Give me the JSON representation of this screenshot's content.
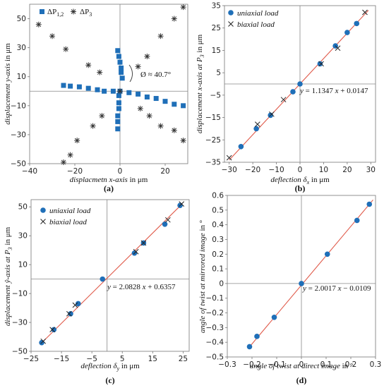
{
  "chart_data": [
    {
      "id": "a",
      "type": "scatter",
      "panel_label": "(a)",
      "xlabel": "displacmetn x-axis in μm",
      "ylabel": "displacement y-axis in μm",
      "xlim": [
        -40,
        30
      ],
      "ylim": [
        -50,
        60
      ],
      "xticks": [
        -40,
        -20,
        0,
        20
      ],
      "yticks": [
        -50,
        -30,
        -10,
        10,
        30,
        50
      ],
      "legend": {
        "placement": "top-left",
        "entries": [
          "ΔP1,2",
          "ΔP3"
        ]
      },
      "annotation": "Ø ≈ 40.7°",
      "colors": {
        "square": "#1f6fb8",
        "star": "#333333"
      },
      "series": [
        {
          "name": "ΔP1,2",
          "marker": "square",
          "points": [
            [
              -1,
              28
            ],
            [
              -0.5,
              24
            ],
            [
              0,
              20
            ],
            [
              0.5,
              16
            ],
            [
              0.5,
              13
            ],
            [
              1,
              9
            ],
            [
              -25,
              4
            ],
            [
              -22,
              3.5
            ],
            [
              -18,
              3
            ],
            [
              -14,
              2
            ],
            [
              -10,
              1
            ],
            [
              -7,
              0
            ],
            [
              -3,
              0
            ],
            [
              0,
              0
            ],
            [
              -0.5,
              -3
            ],
            [
              -0.5,
              -8
            ],
            [
              -0.5,
              -12
            ],
            [
              -1,
              -17
            ],
            [
              -1,
              -21
            ],
            [
              -1,
              -26
            ],
            [
              4,
              -1
            ],
            [
              8,
              -2
            ],
            [
              12,
              -4
            ],
            [
              16,
              -5
            ],
            [
              20,
              -7
            ],
            [
              24,
              -9
            ],
            [
              28,
              -10
            ]
          ]
        },
        {
          "name": "ΔP3",
          "marker": "star",
          "points": [
            [
              -36,
              46
            ],
            [
              -30,
              38
            ],
            [
              -24,
              29
            ],
            [
              -14,
              18
            ],
            [
              -9,
              13
            ],
            [
              0,
              0
            ],
            [
              -8,
              -17
            ],
            [
              -12,
              -24
            ],
            [
              -19,
              -34
            ],
            [
              -22,
              -44
            ],
            [
              -25,
              -49
            ],
            [
              8,
              17
            ],
            [
              12,
              24
            ],
            [
              18,
              38
            ],
            [
              24,
              50
            ],
            [
              28,
              58
            ],
            [
              9,
              -12
            ],
            [
              13,
              -17
            ],
            [
              18,
              -24
            ],
            [
              24,
              -27
            ],
            [
              28,
              -34
            ]
          ]
        }
      ]
    },
    {
      "id": "b",
      "type": "scatter",
      "panel_label": "(b)",
      "xlabel": "deflection δx in μm",
      "ylabel": "displacement x-axis at P3 in μm",
      "xlim": [
        -32,
        32
      ],
      "ylim": [
        -35,
        35
      ],
      "xticks": [
        -30,
        -20,
        -10,
        0,
        10,
        20,
        30
      ],
      "yticks": [
        -35,
        -25,
        -15,
        -5,
        5,
        15,
        25,
        35
      ],
      "legend": {
        "placement": "top-left",
        "entries": [
          "uniaxial load",
          "biaxial load"
        ]
      },
      "fit": {
        "label": "y = 1.1347 x + 0.0147",
        "slope": 1.1347,
        "intercept": 0.0147,
        "x_range": [
          -30,
          29
        ]
      },
      "colors": {
        "dot": "#1f6fb8",
        "cross": "#222222",
        "fit": "#e05a4a"
      },
      "series": [
        {
          "name": "uniaxial load",
          "marker": "dot",
          "x": [
            -25,
            -18.5,
            -12.5,
            -3,
            0,
            8.5,
            15,
            20,
            24
          ],
          "y": [
            -28,
            -20,
            -14,
            -3.5,
            0,
            9,
            17,
            23,
            27
          ]
        },
        {
          "name": "biaxial load",
          "marker": "cross",
          "x": [
            -30,
            -18,
            -12,
            -7,
            9,
            16,
            27.5
          ],
          "y": [
            -33,
            -18,
            -13.5,
            -7,
            9,
            16,
            32
          ]
        }
      ]
    },
    {
      "id": "c",
      "type": "scatter",
      "panel_label": "(c)",
      "xlabel": "deflection δy in μm",
      "ylabel": "displacement ŷ-axis at P3 in μm",
      "xlim": [
        -25,
        27
      ],
      "ylim": [
        -50,
        55
      ],
      "xticks": [
        -25,
        -15,
        -5,
        5,
        15,
        25
      ],
      "yticks": [
        -50,
        -30,
        -10,
        10,
        30,
        50
      ],
      "legend": {
        "placement": "top-left",
        "entries": [
          "uniaxial load",
          "biaxial load"
        ]
      },
      "fit": {
        "label": "y = 2.0828 x + 0.6357",
        "slope": 2.0828,
        "intercept": 0.6357,
        "x_range": [
          -22,
          24.5
        ]
      },
      "colors": {
        "dot": "#1f6fb8",
        "cross": "#222222",
        "fit": "#e05a4a"
      },
      "series": [
        {
          "name": "uniaxial load",
          "marker": "dot",
          "x": [
            -21.5,
            -17.5,
            -12,
            -9.5,
            -1.5,
            9,
            12,
            19,
            24
          ],
          "y": [
            -44,
            -35,
            -24,
            -17,
            0,
            18,
            25,
            38,
            51
          ]
        },
        {
          "name": "biaxial load",
          "marker": "cross",
          "x": [
            -21,
            -18,
            -12.5,
            -10.5,
            9.5,
            12,
            20,
            24.5
          ],
          "y": [
            -43,
            -35,
            -24,
            -18,
            19,
            25,
            41,
            52
          ]
        }
      ]
    },
    {
      "id": "d",
      "type": "scatter",
      "panel_label": "(d)",
      "xlabel": "angle of twist at direct image in °",
      "ylabel": "angle of twist at mirrored image in °",
      "xlim": [
        -0.3,
        0.3
      ],
      "ylim": [
        -0.5,
        0.6
      ],
      "xticks": [
        "-0.3",
        "-0.2",
        "-0.1",
        "0",
        "0.1",
        "0.2",
        "0.3"
      ],
      "yticks": [
        "-0.5",
        "-0.4",
        "-0.3",
        "-0.2",
        "-0.1",
        "0",
        "0.1",
        "0.2",
        "0.3",
        "0.4",
        "0.5",
        "0.6"
      ],
      "fit": {
        "label": "y = 2.0017 x − 0.0109",
        "slope": 2.0017,
        "intercept": -0.0109,
        "x_range": [
          -0.215,
          0.29
        ]
      },
      "colors": {
        "dot": "#1f6fb8",
        "fit": "#e05a4a"
      },
      "series": [
        {
          "marker": "dot",
          "x": [
            -0.21,
            -0.18,
            -0.11,
            0,
            0.105,
            0.225,
            0.275
          ],
          "y": [
            -0.43,
            -0.36,
            -0.23,
            0,
            0.2,
            0.43,
            0.54
          ]
        }
      ]
    }
  ]
}
